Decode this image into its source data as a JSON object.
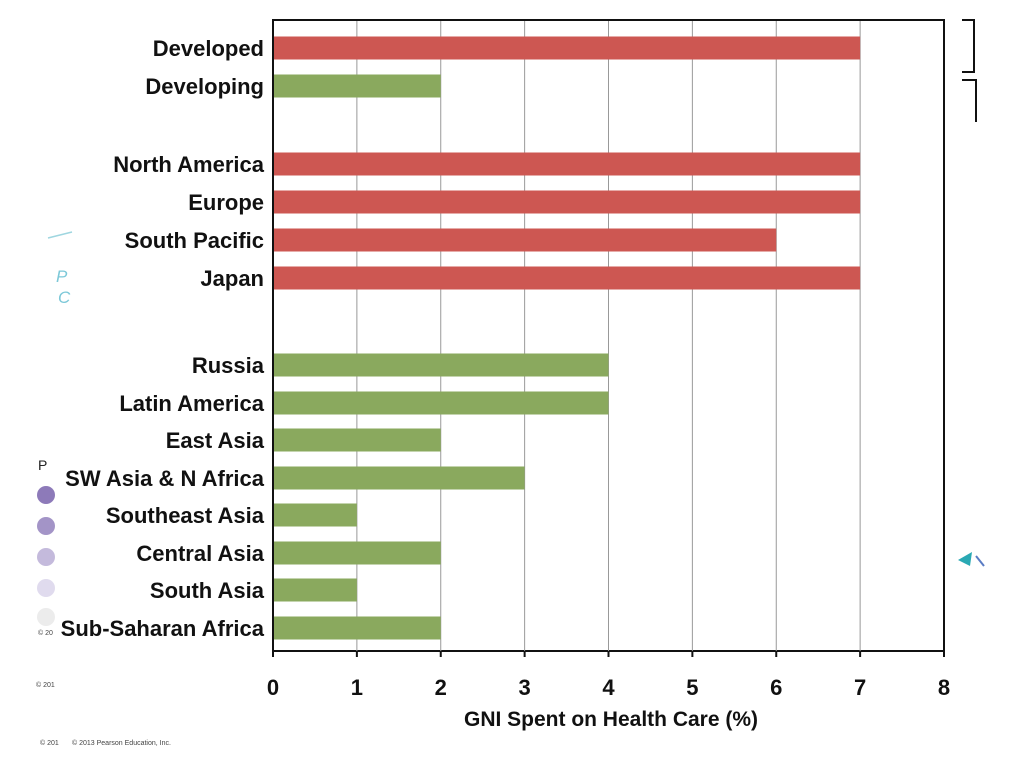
{
  "chart_data": {
    "type": "bar",
    "orientation": "horizontal",
    "categories": [
      "Developed",
      "Developing",
      "North America",
      "Europe",
      "South Pacific",
      "Japan",
      "Russia",
      "Latin America",
      "East Asia",
      "SW Asia & N Africa",
      "Southeast Asia",
      "Central Asia",
      "South Asia",
      "Sub-Saharan Africa"
    ],
    "values": [
      7,
      2,
      7,
      7,
      6,
      7,
      4,
      4,
      2,
      3,
      1,
      2,
      1,
      2
    ],
    "bar_colors": [
      "#cd5752",
      "#8aa95e",
      "#cd5752",
      "#cd5752",
      "#cd5752",
      "#cd5752",
      "#8aa95e",
      "#8aa95e",
      "#8aa95e",
      "#8aa95e",
      "#8aa95e",
      "#8aa95e",
      "#8aa95e",
      "#8aa95e"
    ],
    "xlabel": "GNI Spent on Health Care (%)",
    "xlim": [
      0,
      8
    ],
    "xticks": [
      "0",
      "1",
      "2",
      "3",
      "4",
      "5",
      "6",
      "7",
      "8"
    ],
    "grid": true
  },
  "footer": {
    "copyright": "© 2013 Pearson Education, Inc.",
    "copyright_fragment_1": "© 201",
    "copyright_fragment_2": "© 201",
    "copyright_fragment_3": "© 20"
  },
  "fragments": {
    "left_p_upper": "P",
    "left_c": "C",
    "left_p_lower": "P"
  },
  "colors": {
    "developed_bar": "#cd5752",
    "developing_bar": "#8aa95e",
    "gridline": "#999999",
    "axis": "#111111"
  }
}
